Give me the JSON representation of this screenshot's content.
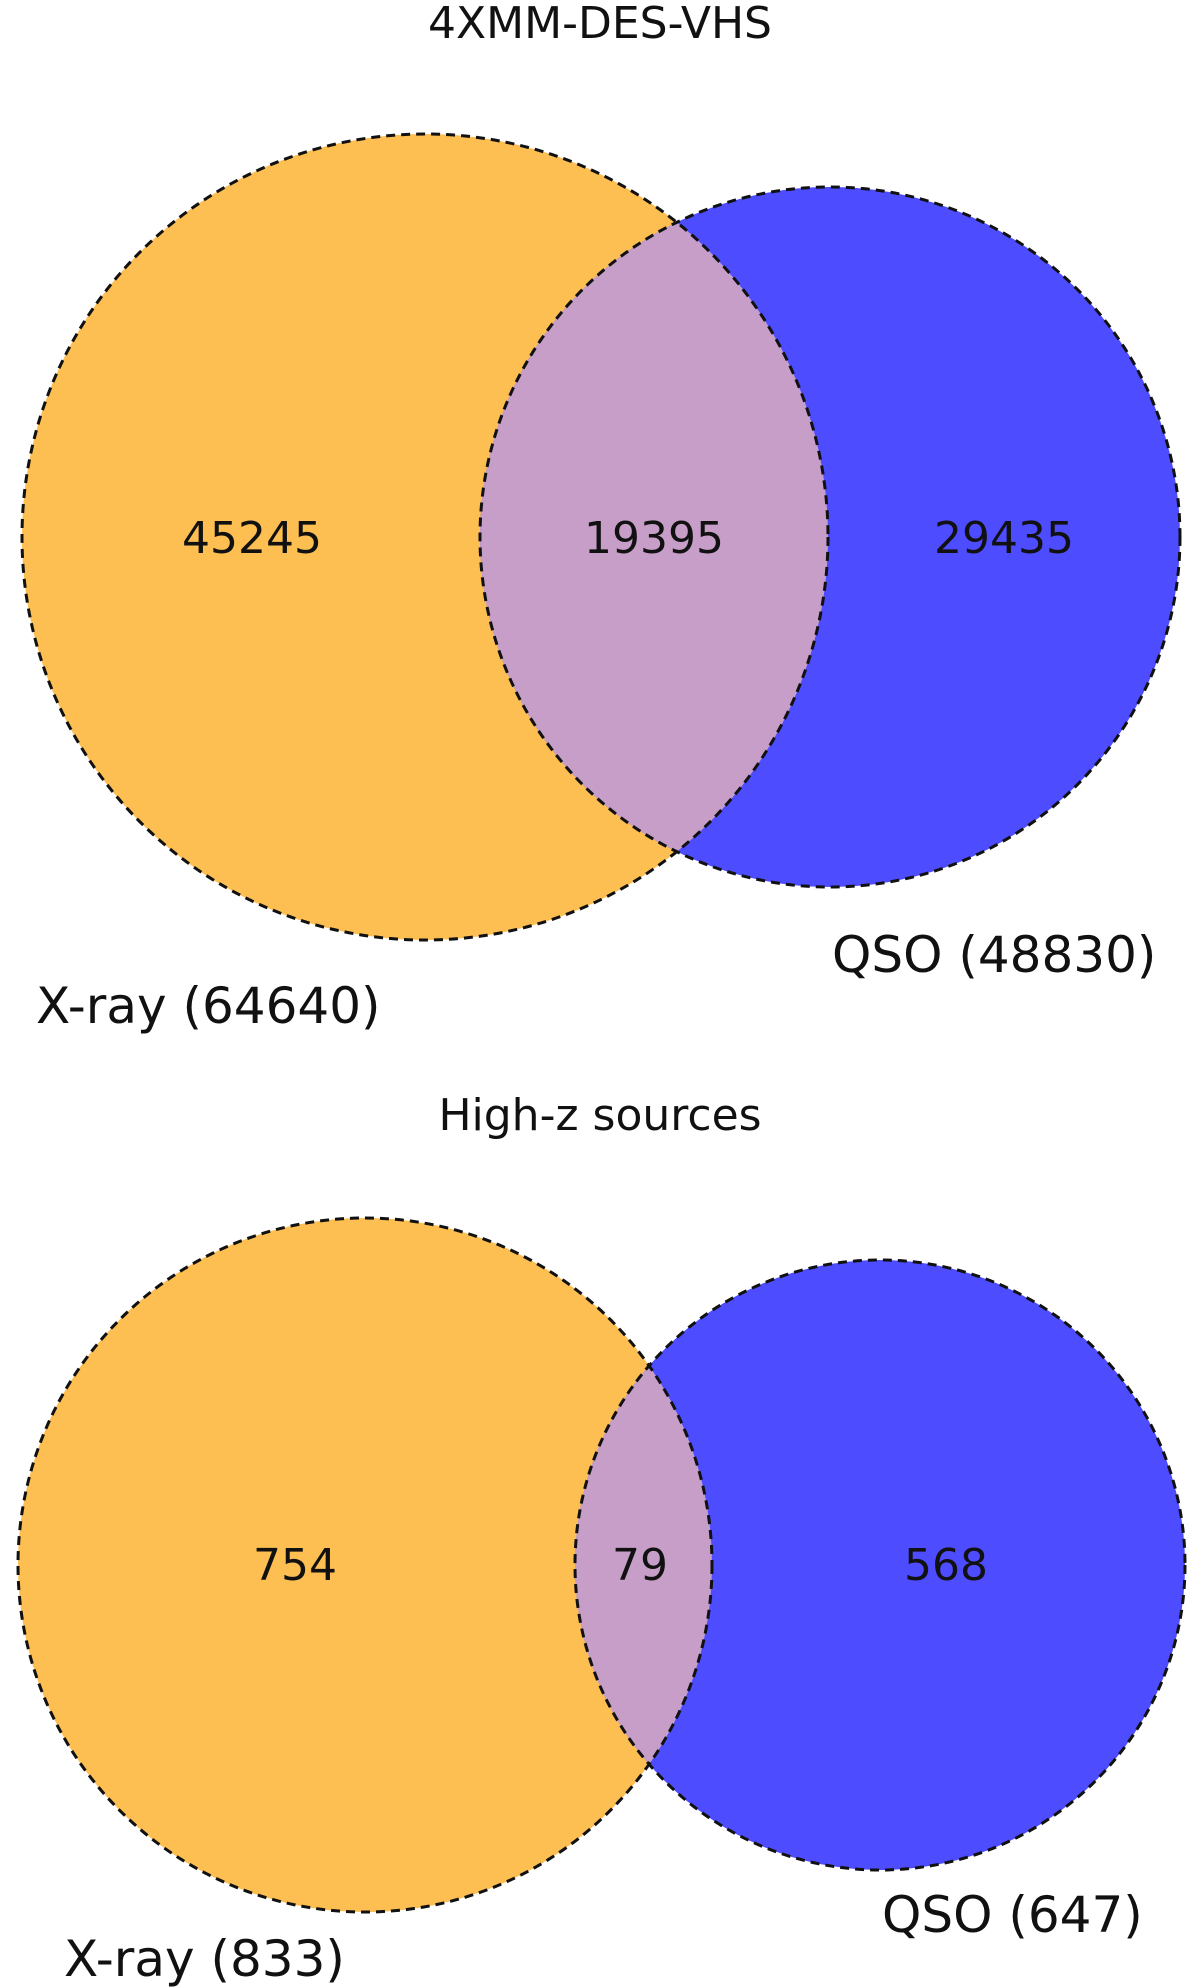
{
  "colors": {
    "xray_fill": "#fdbe52",
    "qso_fill": "#4d4dff",
    "overlap_fill": "#c79ec8",
    "outline": "#111111"
  },
  "diagrams": [
    {
      "title": "4XMM-DES-VHS",
      "sets": [
        {
          "key": "xray",
          "label": "X-ray (64640)",
          "total": 64640
        },
        {
          "key": "qso",
          "label": "QSO (48830)",
          "total": 48830
        }
      ],
      "regions": {
        "xray_only": "45245",
        "overlap": "19395",
        "qso_only": "29435"
      }
    },
    {
      "title": "High-z sources",
      "sets": [
        {
          "key": "xray",
          "label": "X-ray (833)",
          "total": 833
        },
        {
          "key": "qso",
          "label": "QSO (647)",
          "total": 647
        }
      ],
      "regions": {
        "xray_only": "754",
        "overlap": "79",
        "qso_only": "568"
      }
    }
  ]
}
